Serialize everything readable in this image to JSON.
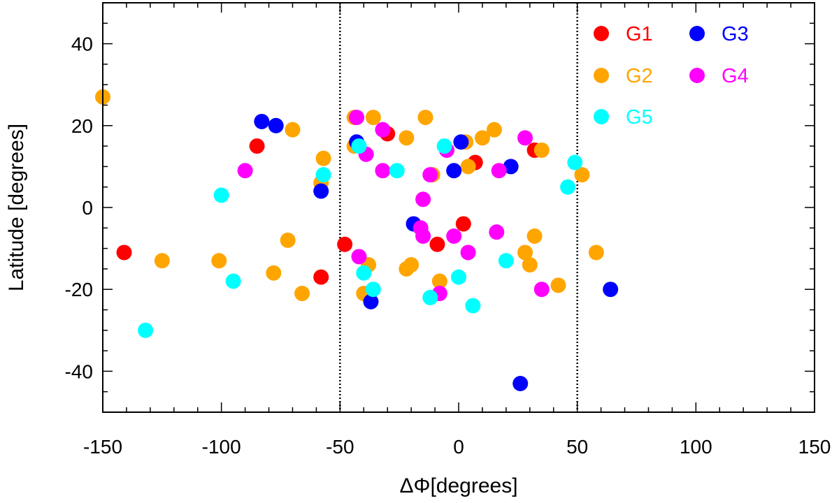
{
  "chart_data": {
    "type": "scatter",
    "xlabel": "ΔΦ[degrees]",
    "ylabel": "Latitude [degrees]",
    "xlim": [
      -150,
      150
    ],
    "ylim": [
      -50,
      50
    ],
    "x_ticks": [
      -150,
      -100,
      -50,
      0,
      50,
      100,
      150
    ],
    "y_ticks": [
      -40,
      -20,
      0,
      20,
      40
    ],
    "x_minor_step": 10,
    "y_minor_step": 5,
    "reference_lines_x": [
      -50,
      50
    ],
    "grid": false,
    "legend_position": "top-right",
    "series": [
      {
        "name": "G1",
        "color": "#ff0000",
        "points": [
          {
            "x": -141,
            "y": -11
          },
          {
            "x": -85,
            "y": 15
          },
          {
            "x": -58,
            "y": -17
          },
          {
            "x": -48,
            "y": -9
          },
          {
            "x": -30,
            "y": 18
          },
          {
            "x": -9,
            "y": -9
          },
          {
            "x": 2,
            "y": -4
          },
          {
            "x": 7,
            "y": 11
          },
          {
            "x": 32,
            "y": 14
          }
        ]
      },
      {
        "name": "G2",
        "color": "#ffa500",
        "points": [
          {
            "x": -150,
            "y": 27
          },
          {
            "x": -125,
            "y": -13
          },
          {
            "x": -101,
            "y": -13
          },
          {
            "x": -78,
            "y": -16
          },
          {
            "x": -72,
            "y": -8
          },
          {
            "x": -70,
            "y": 19
          },
          {
            "x": -66,
            "y": -21
          },
          {
            "x": -57,
            "y": 12
          },
          {
            "x": -58,
            "y": 6
          },
          {
            "x": -44,
            "y": 22
          },
          {
            "x": -44,
            "y": 15
          },
          {
            "x": -36,
            "y": 22
          },
          {
            "x": -38,
            "y": -14
          },
          {
            "x": -40,
            "y": -21
          },
          {
            "x": -22,
            "y": 17
          },
          {
            "x": -22,
            "y": -15
          },
          {
            "x": -20,
            "y": -14
          },
          {
            "x": -14,
            "y": 22
          },
          {
            "x": -11,
            "y": 8
          },
          {
            "x": -8,
            "y": -18
          },
          {
            "x": 3,
            "y": 16
          },
          {
            "x": 4,
            "y": 10
          },
          {
            "x": 10,
            "y": 17
          },
          {
            "x": 15,
            "y": 19
          },
          {
            "x": 28,
            "y": -11
          },
          {
            "x": 30,
            "y": -14
          },
          {
            "x": 32,
            "y": -7
          },
          {
            "x": 35,
            "y": 14
          },
          {
            "x": 42,
            "y": -19
          },
          {
            "x": 52,
            "y": 8
          },
          {
            "x": 58,
            "y": -11
          }
        ]
      },
      {
        "name": "G3",
        "color": "#0000ff",
        "points": [
          {
            "x": -83,
            "y": 21
          },
          {
            "x": -77,
            "y": 20
          },
          {
            "x": -58,
            "y": 4
          },
          {
            "x": -43,
            "y": 16
          },
          {
            "x": -37,
            "y": -23
          },
          {
            "x": -19,
            "y": -4
          },
          {
            "x": -2,
            "y": 9
          },
          {
            "x": 1,
            "y": 16
          },
          {
            "x": 22,
            "y": 10
          },
          {
            "x": 26,
            "y": -43
          },
          {
            "x": 64,
            "y": -20
          }
        ]
      },
      {
        "name": "G4",
        "color": "#ff00ff",
        "points": [
          {
            "x": -90,
            "y": 9
          },
          {
            "x": -43,
            "y": 22
          },
          {
            "x": -39,
            "y": 13
          },
          {
            "x": -42,
            "y": -12
          },
          {
            "x": -32,
            "y": 19
          },
          {
            "x": -32,
            "y": 9
          },
          {
            "x": -15,
            "y": 2
          },
          {
            "x": -16,
            "y": -5
          },
          {
            "x": -15,
            "y": -7
          },
          {
            "x": -12,
            "y": 8
          },
          {
            "x": -5,
            "y": 14
          },
          {
            "x": -2,
            "y": -7
          },
          {
            "x": 4,
            "y": -11
          },
          {
            "x": -8,
            "y": -21
          },
          {
            "x": 16,
            "y": -6
          },
          {
            "x": 17,
            "y": 9
          },
          {
            "x": 28,
            "y": 17
          },
          {
            "x": 35,
            "y": -20
          }
        ]
      },
      {
        "name": "G5",
        "color": "#00ffff",
        "points": [
          {
            "x": -132,
            "y": -30
          },
          {
            "x": -100,
            "y": 3
          },
          {
            "x": -95,
            "y": -18
          },
          {
            "x": -57,
            "y": 8
          },
          {
            "x": -42,
            "y": 15
          },
          {
            "x": -40,
            "y": -16
          },
          {
            "x": -36,
            "y": -20
          },
          {
            "x": -26,
            "y": 9
          },
          {
            "x": -12,
            "y": -22
          },
          {
            "x": -6,
            "y": 15
          },
          {
            "x": 0,
            "y": -17
          },
          {
            "x": 6,
            "y": -24
          },
          {
            "x": 20,
            "y": -13
          },
          {
            "x": 46,
            "y": 5
          },
          {
            "x": 49,
            "y": 11
          }
        ]
      }
    ]
  }
}
